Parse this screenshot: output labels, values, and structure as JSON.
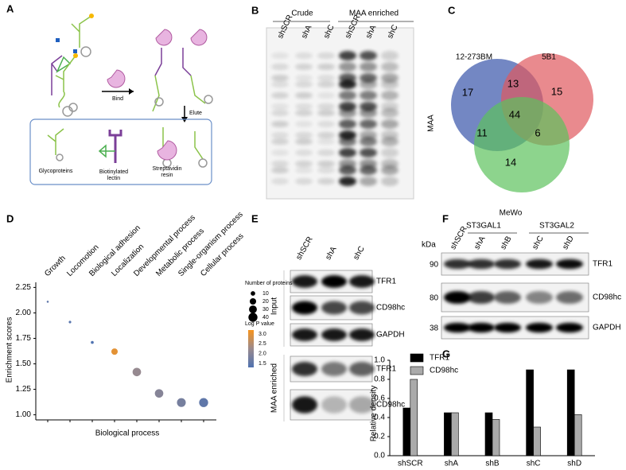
{
  "panel_labels": [
    "A",
    "B",
    "C",
    "D",
    "E",
    "F",
    "G"
  ],
  "panel_a": {
    "bind": "Bind",
    "elute": "Elute",
    "legend": [
      [
        "Glycoproteins"
      ],
      [
        "Biotinylated",
        "lectin"
      ],
      [
        "Streptavidin",
        "resin"
      ]
    ]
  },
  "panel_b": {
    "groups": [
      "Crude",
      "MAA enriched"
    ],
    "lanes": [
      "shSCR",
      "shA",
      "shC",
      "shSCR",
      "shA",
      "shC"
    ],
    "blot_label": "MAA"
  },
  "panel_c": {
    "sets": [
      "12-273BM",
      "5B1",
      "MeWo"
    ],
    "regions": [
      17,
      13,
      15,
      44,
      11,
      6,
      14
    ]
  },
  "panel_e": {
    "lanes": [
      "shSCR",
      "shA",
      "shC"
    ],
    "bands": [
      "TFR1",
      "CD98hc",
      "GAPDH",
      "TFR1",
      "CD98hc"
    ],
    "groups": [
      "Input",
      "MAA enriched"
    ]
  },
  "panel_f": {
    "groups": [
      "ST3GAL1",
      "ST3GAL2"
    ],
    "lanes": [
      "shSCR",
      "shA",
      "shB",
      "shC",
      "shD"
    ],
    "unit": "kDa",
    "markers": [
      90,
      80,
      38
    ],
    "bands": [
      "TFR1",
      "CD98hc",
      "GAPDH"
    ]
  },
  "chart_data": [
    {
      "type": "bubble",
      "xlabel": "Biological process",
      "ylabel": "Enrichment scores",
      "categories": [
        "Growth",
        "Locomotion",
        "Biological adhesion",
        "Localization",
        "Developmental process",
        "Metabolic process",
        "Single-organism process",
        "Cellular process"
      ],
      "category_colors": [
        "#8a3a9a",
        "#000000",
        "#000000",
        "#000000",
        "#000000",
        "#000000",
        "#000000",
        "#000000"
      ],
      "series": [
        {
          "values": [
            2.11,
            1.91,
            1.71,
            1.62,
            1.42,
            1.21,
            1.12,
            1.12
          ],
          "sizes": [
            2,
            3,
            4,
            20,
            35,
            35,
            38,
            40
          ],
          "color_values": [
            1.5,
            1.4,
            1.3,
            3.0,
            2.2,
            2.0,
            1.8,
            1.5
          ]
        }
      ],
      "ylim": [
        0.95,
        2.3
      ],
      "yticks": [
        {
          "value": 1,
          "label": "1.00"
        },
        1.25,
        {
          "value": 1.5,
          "label": "1.50"
        },
        1.75,
        {
          "value": 2,
          "label": "2.00"
        },
        2.25
      ],
      "size_legend": {
        "title": "Number of proteins",
        "values": [
          10,
          20,
          30,
          40
        ]
      },
      "color_legend": {
        "title": "Log P value",
        "colormap": [
          "#4f72b0",
          "#9a8a8e",
          "#f7941d"
        ],
        "clim": [
          1.3,
          3.2
        ],
        "ticks": [
          {
            "value": 3,
            "label": "3.0"
          },
          2.5,
          {
            "value": 2,
            "label": "2.0"
          },
          1.5
        ]
      }
    },
    {
      "type": "bar",
      "ylabel": "Relative density",
      "legend": "top-left",
      "categories": [
        "shSCR",
        "shA",
        "shB",
        "shC",
        "shD"
      ],
      "series": [
        {
          "name": "TFR1",
          "color": "#000000",
          "values": [
            0.5,
            0.45,
            0.45,
            0.9,
            0.9
          ]
        },
        {
          "name": "CD98hc",
          "color": "#aaaaaa",
          "values": [
            0.8,
            0.45,
            0.38,
            0.3,
            0.43
          ]
        }
      ],
      "ylim": [
        0,
        1.0
      ],
      "yticks": [
        {
          "value": 0,
          "label": "0.0"
        },
        0.2,
        0.4,
        0.6,
        0.8,
        {
          "value": 1,
          "label": "1.0"
        }
      ]
    }
  ]
}
